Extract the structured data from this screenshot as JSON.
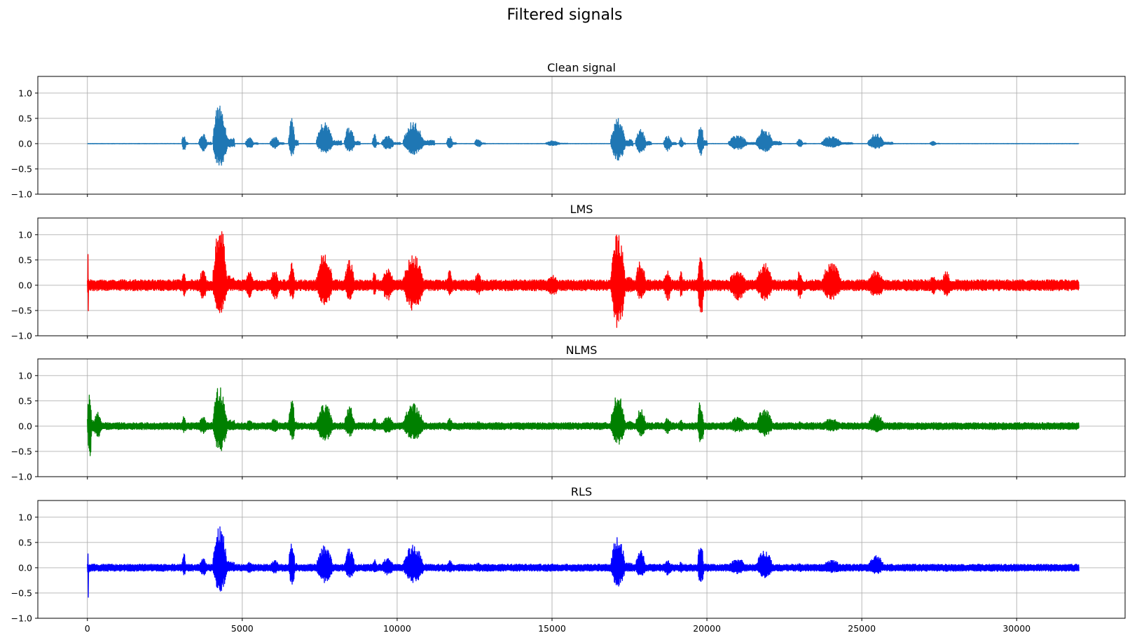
{
  "figure": {
    "suptitle": "Filtered signals"
  },
  "chart_data": [
    {
      "type": "line",
      "title": "Clean signal",
      "color": "#1f77b4",
      "xlabel": "",
      "ylabel": "",
      "xlim": [
        -1600,
        33500
      ],
      "ylim": [
        -1.0,
        1.33
      ],
      "xticks": [
        0,
        5000,
        10000,
        15000,
        20000,
        25000,
        30000
      ],
      "yticks": [
        -1.0,
        -0.5,
        0.0,
        0.5,
        1.0
      ],
      "ytick_labels": [
        "−1.0",
        "−0.5",
        "0.0",
        "0.5",
        "1.0"
      ],
      "show_xtick_labels": false,
      "grid": true,
      "noise": 0.004,
      "bursts": [
        [
          3050,
          3250,
          0.2,
          -0.15
        ],
        [
          3600,
          4000,
          0.2,
          -0.15
        ],
        [
          4050,
          4750,
          0.82,
          -0.47
        ],
        [
          5100,
          5500,
          0.12,
          -0.1
        ],
        [
          5900,
          6350,
          0.15,
          -0.1
        ],
        [
          6500,
          6800,
          0.5,
          -0.25
        ],
        [
          7400,
          8200,
          0.43,
          -0.2
        ],
        [
          8300,
          8800,
          0.35,
          -0.17
        ],
        [
          9200,
          9400,
          0.2,
          -0.1
        ],
        [
          9500,
          10100,
          0.16,
          -0.12
        ],
        [
          10200,
          11200,
          0.44,
          -0.22
        ],
        [
          11600,
          11900,
          0.17,
          -0.1
        ],
        [
          12500,
          12850,
          0.1,
          -0.07
        ],
        [
          14800,
          15500,
          0.06,
          -0.04
        ],
        [
          16900,
          17600,
          0.55,
          -0.35
        ],
        [
          17700,
          18200,
          0.3,
          -0.2
        ],
        [
          18600,
          19000,
          0.16,
          -0.15
        ],
        [
          19100,
          19300,
          0.13,
          -0.1
        ],
        [
          19700,
          20000,
          0.45,
          -0.25
        ],
        [
          20700,
          21600,
          0.18,
          -0.12
        ],
        [
          21600,
          22400,
          0.31,
          -0.17
        ],
        [
          22900,
          23200,
          0.1,
          -0.07
        ],
        [
          23700,
          24700,
          0.15,
          -0.08
        ],
        [
          25200,
          26000,
          0.2,
          -0.1
        ],
        [
          27200,
          27500,
          0.05,
          -0.04
        ]
      ]
    },
    {
      "type": "line",
      "title": "LMS",
      "color": "#ff0000",
      "xlabel": "",
      "ylabel": "",
      "xlim": [
        -1600,
        33500
      ],
      "ylim": [
        -1.0,
        1.33
      ],
      "xticks": [
        0,
        5000,
        10000,
        15000,
        20000,
        25000,
        30000
      ],
      "yticks": [
        -1.0,
        -0.5,
        0.0,
        0.5,
        1.0
      ],
      "ytick_labels": [
        "−1.0",
        "−0.5",
        "0.0",
        "0.5",
        "1.0"
      ],
      "show_xtick_labels": false,
      "grid": true,
      "noise": 0.11,
      "bursts": [
        [
          0,
          60,
          0.7,
          -0.65
        ],
        [
          3050,
          3250,
          0.3,
          -0.25
        ],
        [
          3600,
          4000,
          0.3,
          -0.3
        ],
        [
          4050,
          4750,
          1.25,
          -0.58
        ],
        [
          5100,
          5500,
          0.3,
          -0.25
        ],
        [
          5900,
          6350,
          0.3,
          -0.3
        ],
        [
          6500,
          6800,
          0.5,
          -0.3
        ],
        [
          7400,
          8200,
          0.68,
          -0.4
        ],
        [
          8300,
          8800,
          0.5,
          -0.3
        ],
        [
          9200,
          9400,
          0.3,
          -0.2
        ],
        [
          9500,
          10100,
          0.35,
          -0.3
        ],
        [
          10200,
          11200,
          0.6,
          -0.52
        ],
        [
          11600,
          11900,
          0.3,
          -0.2
        ],
        [
          12500,
          12850,
          0.3,
          -0.2
        ],
        [
          14800,
          15500,
          0.2,
          -0.2
        ],
        [
          16900,
          17600,
          1.05,
          -0.9
        ],
        [
          17700,
          18200,
          0.5,
          -0.3
        ],
        [
          18600,
          19000,
          0.3,
          -0.3
        ],
        [
          19100,
          19300,
          0.3,
          -0.25
        ],
        [
          19700,
          20000,
          0.6,
          -0.75
        ],
        [
          20700,
          21600,
          0.3,
          -0.3
        ],
        [
          21600,
          22400,
          0.45,
          -0.3
        ],
        [
          22900,
          23200,
          0.3,
          -0.3
        ],
        [
          23700,
          24700,
          0.45,
          -0.3
        ],
        [
          25200,
          26000,
          0.3,
          -0.25
        ],
        [
          27200,
          27500,
          0.2,
          -0.2
        ],
        [
          27600,
          28000,
          0.3,
          -0.25
        ]
      ]
    },
    {
      "type": "line",
      "title": "NLMS",
      "color": "#008000",
      "xlabel": "",
      "ylabel": "",
      "xlim": [
        -1600,
        33500
      ],
      "ylim": [
        -1.0,
        1.33
      ],
      "xticks": [
        0,
        5000,
        10000,
        15000,
        20000,
        25000,
        30000
      ],
      "yticks": [
        -1.0,
        -0.5,
        0.0,
        0.5,
        1.0
      ],
      "ytick_labels": [
        "−1.0",
        "−0.5",
        "0.0",
        "0.5",
        "1.0"
      ],
      "show_xtick_labels": false,
      "grid": true,
      "noise": 0.07,
      "bursts": [
        [
          0,
          200,
          0.8,
          -0.7
        ],
        [
          200,
          600,
          0.3,
          -0.25
        ],
        [
          3050,
          3250,
          0.2,
          -0.15
        ],
        [
          3600,
          4000,
          0.2,
          -0.15
        ],
        [
          4050,
          4750,
          0.82,
          -0.52
        ],
        [
          5100,
          5500,
          0.12,
          -0.1
        ],
        [
          5900,
          6350,
          0.15,
          -0.12
        ],
        [
          6500,
          6800,
          0.58,
          -0.32
        ],
        [
          7400,
          8200,
          0.45,
          -0.3
        ],
        [
          8300,
          8800,
          0.4,
          -0.2
        ],
        [
          9200,
          9400,
          0.2,
          -0.12
        ],
        [
          9500,
          10100,
          0.2,
          -0.15
        ],
        [
          10200,
          11200,
          0.45,
          -0.28
        ],
        [
          11600,
          11900,
          0.17,
          -0.1
        ],
        [
          12500,
          12850,
          0.1,
          -0.08
        ],
        [
          14800,
          15500,
          0.08,
          -0.06
        ],
        [
          16900,
          17600,
          0.65,
          -0.37
        ],
        [
          17700,
          18200,
          0.35,
          -0.2
        ],
        [
          18600,
          19000,
          0.16,
          -0.15
        ],
        [
          19100,
          19300,
          0.13,
          -0.1
        ],
        [
          19700,
          20000,
          0.52,
          -0.38
        ],
        [
          20700,
          21600,
          0.18,
          -0.12
        ],
        [
          21600,
          22400,
          0.35,
          -0.2
        ],
        [
          22900,
          23200,
          0.1,
          -0.08
        ],
        [
          23700,
          24700,
          0.15,
          -0.1
        ],
        [
          25200,
          26000,
          0.25,
          -0.12
        ],
        [
          27200,
          27500,
          0.08,
          -0.05
        ]
      ]
    },
    {
      "type": "line",
      "title": "RLS",
      "color": "#0000ff",
      "xlabel": "",
      "ylabel": "",
      "xlim": [
        -1600,
        33500
      ],
      "ylim": [
        -1.0,
        1.33
      ],
      "xticks": [
        0,
        5000,
        10000,
        15000,
        20000,
        25000,
        30000
      ],
      "yticks": [
        -1.0,
        -0.5,
        0.0,
        0.5,
        1.0
      ],
      "ytick_labels": [
        "−1.0",
        "−0.5",
        "0.0",
        "0.5",
        "1.0"
      ],
      "xtick_labels": [
        "0",
        "5000",
        "10000",
        "15000",
        "20000",
        "25000",
        "30000"
      ],
      "show_xtick_labels": true,
      "grid": true,
      "noise": 0.07,
      "bursts": [
        [
          0,
          60,
          0.33,
          -0.63
        ],
        [
          3050,
          3250,
          0.3,
          -0.15
        ],
        [
          3600,
          4000,
          0.2,
          -0.15
        ],
        [
          4050,
          4750,
          0.82,
          -0.48
        ],
        [
          5100,
          5500,
          0.12,
          -0.1
        ],
        [
          5900,
          6350,
          0.15,
          -0.12
        ],
        [
          6500,
          6800,
          0.58,
          -0.35
        ],
        [
          7400,
          8200,
          0.45,
          -0.3
        ],
        [
          8300,
          8800,
          0.4,
          -0.2
        ],
        [
          9200,
          9400,
          0.2,
          -0.12
        ],
        [
          9500,
          10100,
          0.2,
          -0.15
        ],
        [
          10200,
          11200,
          0.45,
          -0.3
        ],
        [
          11600,
          11900,
          0.17,
          -0.1
        ],
        [
          12500,
          12850,
          0.1,
          -0.08
        ],
        [
          14800,
          15500,
          0.08,
          -0.06
        ],
        [
          16900,
          17600,
          0.63,
          -0.38
        ],
        [
          17700,
          18200,
          0.35,
          -0.2
        ],
        [
          18600,
          19000,
          0.16,
          -0.15
        ],
        [
          19100,
          19300,
          0.13,
          -0.1
        ],
        [
          19700,
          20000,
          0.5,
          -0.35
        ],
        [
          20700,
          21600,
          0.18,
          -0.12
        ],
        [
          21600,
          22400,
          0.35,
          -0.2
        ],
        [
          22900,
          23200,
          0.1,
          -0.08
        ],
        [
          23700,
          24700,
          0.15,
          -0.1
        ],
        [
          25200,
          26000,
          0.25,
          -0.12
        ],
        [
          27200,
          27500,
          0.08,
          -0.05
        ]
      ]
    }
  ]
}
